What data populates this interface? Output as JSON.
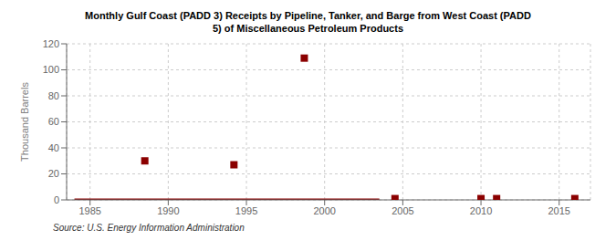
{
  "chart_data": {
    "type": "line",
    "title": "Monthly Gulf Coast (PADD 3) Receipts by Pipeline, Tanker, and Barge from West Coast (PADD\n5) of Miscellaneous Petroleum Products",
    "ylabel": "Thousand Barrels",
    "annotations": [
      "Source: U.S. Energy Information Administration"
    ],
    "xlim": [
      1983.5,
      2017
    ],
    "xticks": [
      1985,
      1990,
      1995,
      2000,
      2005,
      2010,
      2015
    ],
    "ylim": [
      0,
      120
    ],
    "yticks": [
      0,
      20,
      40,
      60,
      80,
      100,
      120
    ],
    "grid": true,
    "series": [
      {
        "type": "line",
        "color": "#8b0000",
        "line_style": "solid",
        "x": [
          1984.0,
          2003.5
        ],
        "values": [
          0,
          0
        ]
      },
      {
        "type": "scatter",
        "color": "#8b0000",
        "marker": "square",
        "x": [
          1988.5,
          1994.2,
          1998.7,
          2004.5,
          2010.0,
          2011.0,
          2016.0
        ],
        "values": [
          30,
          27,
          109,
          1,
          1,
          1,
          1
        ]
      }
    ]
  }
}
